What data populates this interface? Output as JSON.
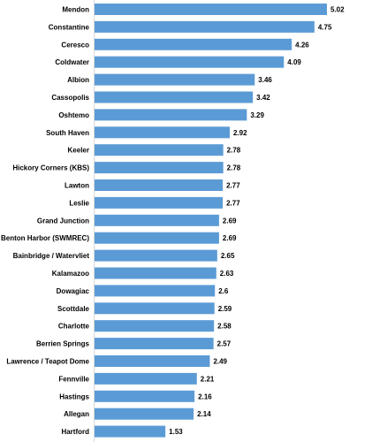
{
  "chart_data": {
    "type": "bar",
    "orientation": "horizontal",
    "categories": [
      "Mendon",
      "Constantine",
      "Ceresco",
      "Coldwater",
      "Albion",
      "Cassopolis",
      "Oshtemo",
      "South Haven",
      "Keeler",
      "Hickory Corners (KBS)",
      "Lawton",
      "Leslie",
      "Grand Junction",
      "Benton Harbor (SWMREC)",
      "Bainbridge / Watervliet",
      "Kalamazoo",
      "Dowagiac",
      "Scottdale",
      "Charlotte",
      "Berrien Springs",
      "Lawrence / Teapot Dome",
      "Fennville",
      "Hastings",
      "Allegan",
      "Hartford"
    ],
    "values": [
      5.02,
      4.75,
      4.26,
      4.09,
      3.46,
      3.42,
      3.29,
      2.92,
      2.78,
      2.78,
      2.77,
      2.77,
      2.69,
      2.69,
      2.65,
      2.63,
      2.6,
      2.59,
      2.58,
      2.57,
      2.49,
      2.21,
      2.16,
      2.14,
      1.53
    ],
    "value_labels": [
      "5.02",
      "4.75",
      "4.26",
      "4.09",
      "3.46",
      "3.42",
      "3.29",
      "2.92",
      "2.78",
      "2.78",
      "2.77",
      "2.77",
      "2.69",
      "2.69",
      "2.65",
      "2.63",
      "2.6",
      "2.59",
      "2.58",
      "2.57",
      "2.49",
      "2.21",
      "2.16",
      "2.14",
      "1.53"
    ],
    "xlim": [
      0,
      5.02
    ],
    "grid": false,
    "bar_color": "#5b9bd5"
  }
}
